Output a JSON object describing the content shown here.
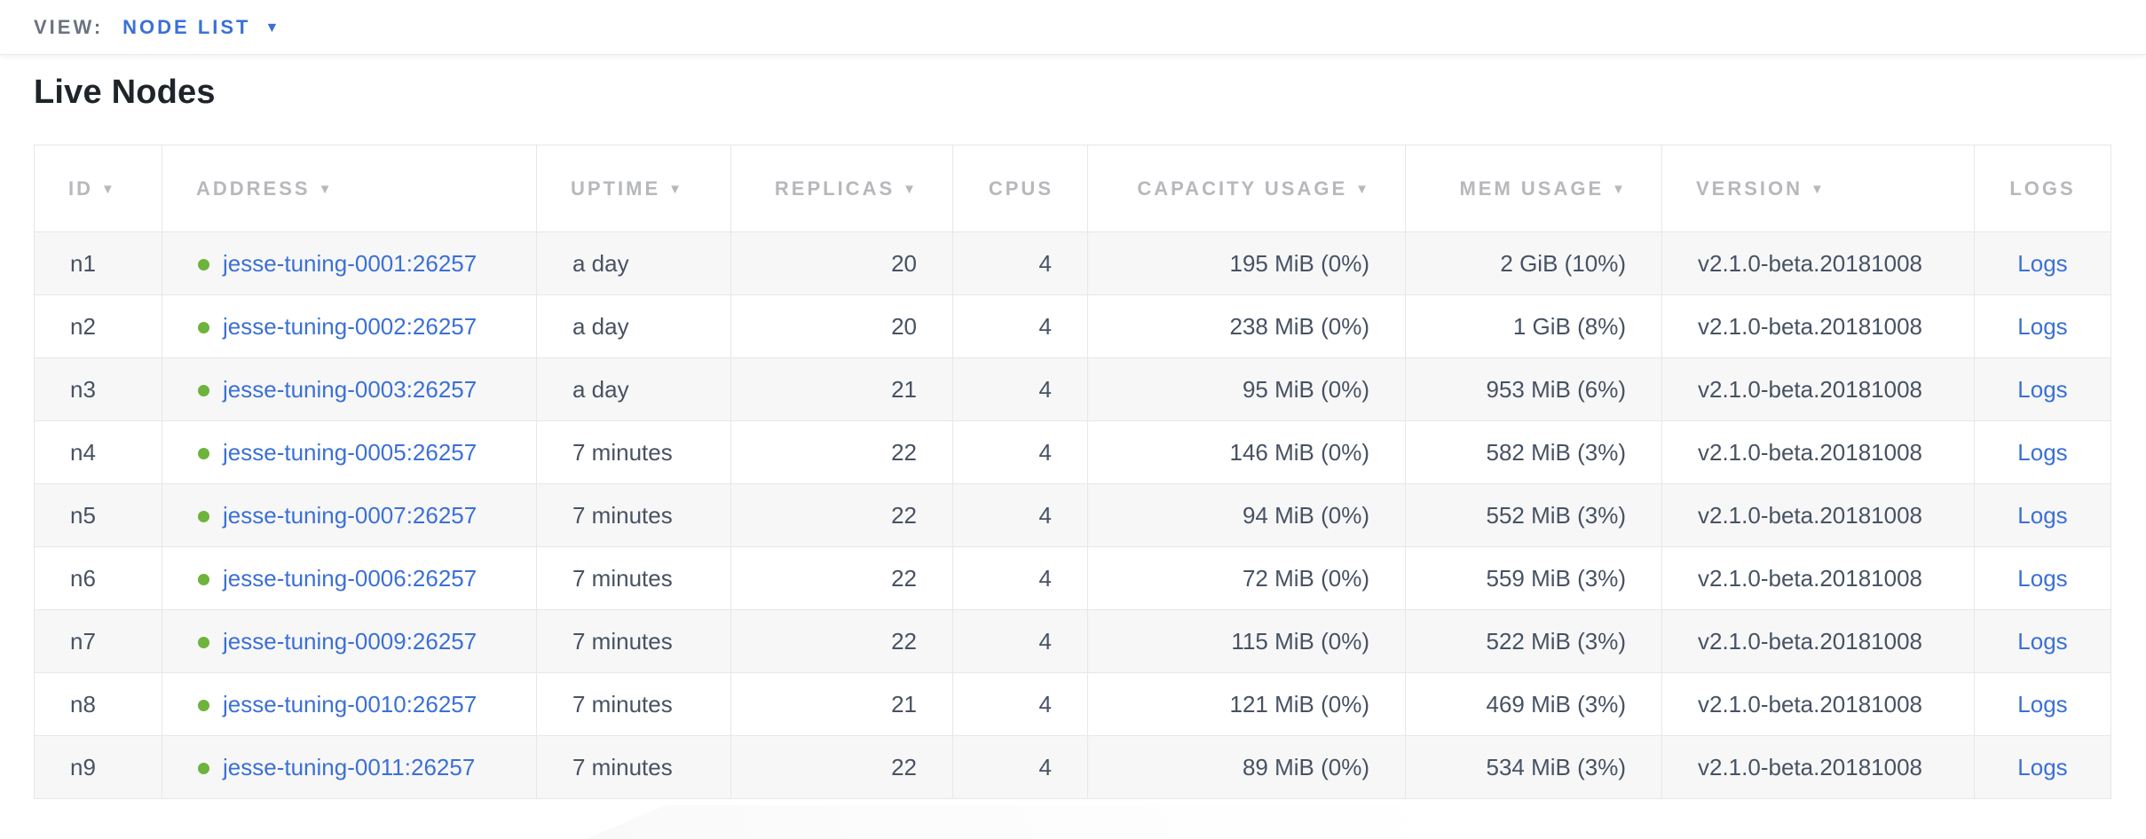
{
  "view_bar": {
    "label": "VIEW:",
    "selected": "NODE LIST"
  },
  "heading": "Live Nodes",
  "icons": {
    "sort_caret": "▼",
    "view_caret": "▼"
  },
  "colors": {
    "link_blue": "#3b70d6",
    "live_green": "#6db33c",
    "header_gray": "#b6b8bc",
    "cell_text": "#475263"
  },
  "table": {
    "columns": [
      {
        "key": "id",
        "label": "ID",
        "sortable": true
      },
      {
        "key": "address",
        "label": "ADDRESS",
        "sortable": true
      },
      {
        "key": "uptime",
        "label": "UPTIME",
        "sortable": true
      },
      {
        "key": "replicas",
        "label": "REPLICAS",
        "sortable": true
      },
      {
        "key": "cpus",
        "label": "CPUS",
        "sortable": false
      },
      {
        "key": "capacity",
        "label": "CAPACITY USAGE",
        "sortable": true
      },
      {
        "key": "mem",
        "label": "MEM USAGE",
        "sortable": true
      },
      {
        "key": "version",
        "label": "VERSION",
        "sortable": true
      },
      {
        "key": "logs",
        "label": "LOGS",
        "sortable": false
      }
    ],
    "rows": [
      {
        "id": "n1",
        "status": "live",
        "address": "jesse-tuning-0001:26257",
        "uptime": "a day",
        "replicas": "20",
        "cpus": "4",
        "capacity": "195 MiB (0%)",
        "mem": "2 GiB (10%)",
        "version": "v2.1.0-beta.20181008",
        "logs": "Logs"
      },
      {
        "id": "n2",
        "status": "live",
        "address": "jesse-tuning-0002:26257",
        "uptime": "a day",
        "replicas": "20",
        "cpus": "4",
        "capacity": "238 MiB (0%)",
        "mem": "1 GiB (8%)",
        "version": "v2.1.0-beta.20181008",
        "logs": "Logs"
      },
      {
        "id": "n3",
        "status": "live",
        "address": "jesse-tuning-0003:26257",
        "uptime": "a day",
        "replicas": "21",
        "cpus": "4",
        "capacity": "95 MiB (0%)",
        "mem": "953 MiB (6%)",
        "version": "v2.1.0-beta.20181008",
        "logs": "Logs"
      },
      {
        "id": "n4",
        "status": "live",
        "address": "jesse-tuning-0005:26257",
        "uptime": "7 minutes",
        "replicas": "22",
        "cpus": "4",
        "capacity": "146 MiB (0%)",
        "mem": "582 MiB (3%)",
        "version": "v2.1.0-beta.20181008",
        "logs": "Logs"
      },
      {
        "id": "n5",
        "status": "live",
        "address": "jesse-tuning-0007:26257",
        "uptime": "7 minutes",
        "replicas": "22",
        "cpus": "4",
        "capacity": "94 MiB (0%)",
        "mem": "552 MiB (3%)",
        "version": "v2.1.0-beta.20181008",
        "logs": "Logs"
      },
      {
        "id": "n6",
        "status": "live",
        "address": "jesse-tuning-0006:26257",
        "uptime": "7 minutes",
        "replicas": "22",
        "cpus": "4",
        "capacity": "72 MiB (0%)",
        "mem": "559 MiB (3%)",
        "version": "v2.1.0-beta.20181008",
        "logs": "Logs"
      },
      {
        "id": "n7",
        "status": "live",
        "address": "jesse-tuning-0009:26257",
        "uptime": "7 minutes",
        "replicas": "22",
        "cpus": "4",
        "capacity": "115 MiB (0%)",
        "mem": "522 MiB (3%)",
        "version": "v2.1.0-beta.20181008",
        "logs": "Logs"
      },
      {
        "id": "n8",
        "status": "live",
        "address": "jesse-tuning-0010:26257",
        "uptime": "7 minutes",
        "replicas": "21",
        "cpus": "4",
        "capacity": "121 MiB (0%)",
        "mem": "469 MiB (3%)",
        "version": "v2.1.0-beta.20181008",
        "logs": "Logs"
      },
      {
        "id": "n9",
        "status": "live",
        "address": "jesse-tuning-0011:26257",
        "uptime": "7 minutes",
        "replicas": "22",
        "cpus": "4",
        "capacity": "89 MiB (0%)",
        "mem": "534 MiB (3%)",
        "version": "v2.1.0-beta.20181008",
        "logs": "Logs"
      }
    ]
  }
}
